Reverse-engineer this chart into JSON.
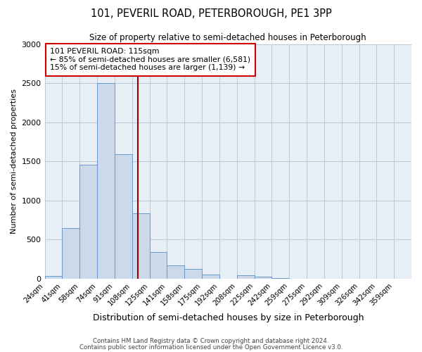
{
  "title": "101, PEVERIL ROAD, PETERBOROUGH, PE1 3PP",
  "subtitle": "Size of property relative to semi-detached houses in Peterborough",
  "xlabel": "Distribution of semi-detached houses by size in Peterborough",
  "ylabel": "Number of semi-detached properties",
  "bin_labels": [
    "24sqm",
    "41sqm",
    "58sqm",
    "74sqm",
    "91sqm",
    "108sqm",
    "125sqm",
    "141sqm",
    "158sqm",
    "175sqm",
    "192sqm",
    "208sqm",
    "225sqm",
    "242sqm",
    "259sqm",
    "275sqm",
    "292sqm",
    "309sqm",
    "326sqm",
    "342sqm",
    "359sqm"
  ],
  "bin_values": [
    35,
    645,
    1460,
    2500,
    1590,
    840,
    340,
    170,
    120,
    50,
    0,
    40,
    20,
    5,
    0,
    0,
    0,
    0,
    0,
    0,
    0
  ],
  "bar_color": "#ccd9ea",
  "bar_edge_color": "#6699cc",
  "line_color": "#990000",
  "annotation_title": "101 PEVERIL ROAD: 115sqm",
  "annotation_line1": "← 85% of semi-detached houses are smaller (6,581)",
  "annotation_line2": "15% of semi-detached houses are larger (1,139) →",
  "footer1": "Contains HM Land Registry data © Crown copyright and database right 2024.",
  "footer2": "Contains public sector information licensed under the Open Government Licence v3.0.",
  "ylim": [
    0,
    3000
  ],
  "yticks": [
    0,
    500,
    1000,
    1500,
    2000,
    2500,
    3000
  ],
  "background_color": "#ffffff",
  "plot_bg_color": "#e8eef5",
  "grid_color": "#b8c8d8",
  "property_line_x": 115
}
